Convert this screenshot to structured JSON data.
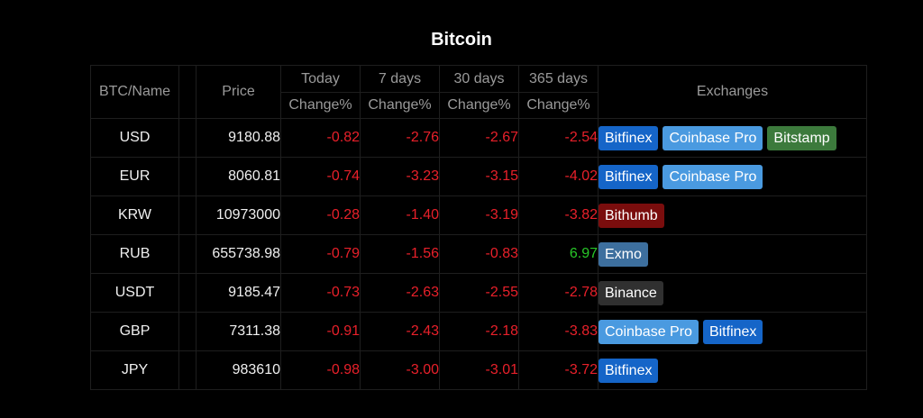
{
  "title": "Bitcoin",
  "headers": {
    "name": "BTC/Name",
    "price": "Price",
    "today": "Today",
    "d7": "7 days",
    "d30": "30 days",
    "d365": "365 days",
    "change": "Change%",
    "exchanges": "Exchanges"
  },
  "rows": [
    {
      "name": "USD",
      "price": "9180.88",
      "today": "-0.82",
      "d7": "-2.76",
      "d30": "-2.67",
      "d365": "-2.54",
      "exchanges": [
        "Bitfinex",
        "Coinbase Pro",
        "Bitstamp"
      ]
    },
    {
      "name": "EUR",
      "price": "8060.81",
      "today": "-0.74",
      "d7": "-3.23",
      "d30": "-3.15",
      "d365": "-4.02",
      "exchanges": [
        "Bitfinex",
        "Coinbase Pro"
      ]
    },
    {
      "name": "KRW",
      "price": "10973000",
      "today": "-0.28",
      "d7": "-1.40",
      "d30": "-3.19",
      "d365": "-3.82",
      "exchanges": [
        "Bithumb"
      ]
    },
    {
      "name": "RUB",
      "price": "655738.98",
      "today": "-0.79",
      "d7": "-1.56",
      "d30": "-0.83",
      "d365": "6.97",
      "exchanges": [
        "Exmo"
      ]
    },
    {
      "name": "USDT",
      "price": "9185.47",
      "today": "-0.73",
      "d7": "-2.63",
      "d30": "-2.55",
      "d365": "-2.78",
      "exchanges": [
        "Binance"
      ]
    },
    {
      "name": "GBP",
      "price": "7311.38",
      "today": "-0.91",
      "d7": "-2.43",
      "d30": "-2.18",
      "d365": "-3.83",
      "exchanges": [
        "Coinbase Pro",
        "Bitfinex"
      ]
    },
    {
      "name": "JPY",
      "price": "983610",
      "today": "-0.98",
      "d7": "-3.00",
      "d30": "-3.01",
      "d365": "-3.72",
      "exchanges": [
        "Bitfinex"
      ]
    }
  ],
  "colors": {
    "negative": "#e8202a",
    "positive": "#28c828",
    "Bitfinex": "#1565c8",
    "Coinbase Pro": "#4a9ae0",
    "Bitstamp": "#3c7a3c",
    "Bithumb": "#7a0d0d",
    "Exmo": "#3d6f9e",
    "Binance": "#303030"
  }
}
